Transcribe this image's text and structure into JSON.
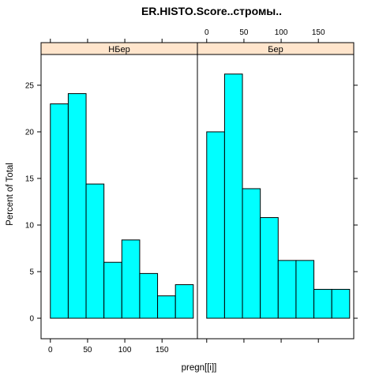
{
  "chart_data": {
    "type": "bar",
    "title": "ER.HISTO.Score..стромы..",
    "xlabel": "pregn[[i]]",
    "ylabel": "Percent of Total",
    "xlim": [
      -12.5,
      197.5
    ],
    "ylim": [
      -2.2,
      28.3
    ],
    "x_ticks": [
      "0",
      "50",
      "100",
      "150"
    ],
    "y_ticks": [
      "0",
      "5",
      "10",
      "15",
      "20",
      "25"
    ],
    "bin_edges": [
      0,
      24,
      48,
      72,
      96,
      120,
      144,
      168,
      192
    ],
    "bar_color": "#00ffff",
    "strip_color": "#ffe5cc",
    "grid": false,
    "panels": [
      {
        "name": "НБер",
        "values": [
          23.0,
          24.1,
          14.4,
          6.0,
          8.4,
          4.8,
          2.4,
          3.6
        ]
      },
      {
        "name": "Бер",
        "values": [
          20.0,
          26.2,
          13.9,
          10.8,
          6.2,
          6.2,
          3.1,
          3.1
        ]
      }
    ]
  }
}
